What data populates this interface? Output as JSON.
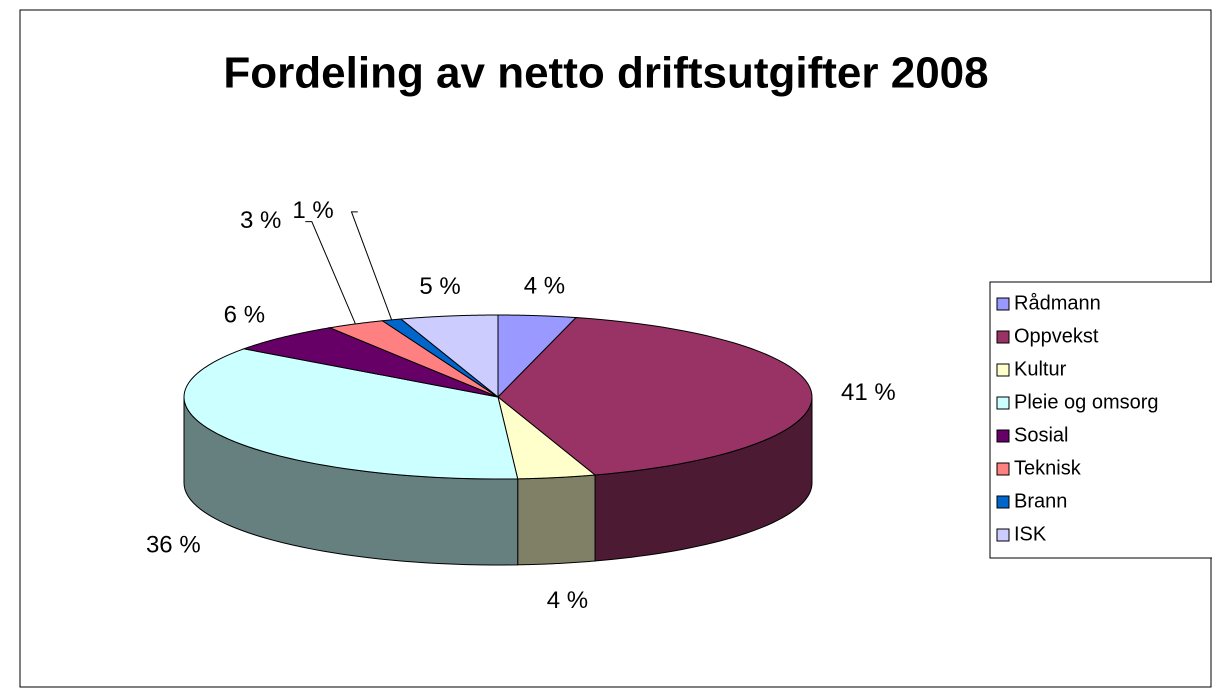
{
  "chart_data": {
    "type": "pie",
    "style": "3d",
    "title": "Fordeling av netto driftsutgifter 2008",
    "categories": [
      "Rådmann",
      "Oppvekst",
      "Kultur",
      "Pleie og omsorg",
      "Sosial",
      "Teknisk",
      "Brann",
      "ISK"
    ],
    "values": [
      4,
      41,
      4,
      36,
      6,
      3,
      1,
      5
    ],
    "value_labels": [
      "4 %",
      "41 %",
      "4 %",
      "36 %",
      "6 %",
      "3 %",
      "1 %",
      "5 %"
    ],
    "colors": [
      "#9999ff",
      "#993366",
      "#ffffcc",
      "#ccffff",
      "#660066",
      "#ff8080",
      "#0066cc",
      "#ccccff"
    ],
    "legend": "right"
  }
}
